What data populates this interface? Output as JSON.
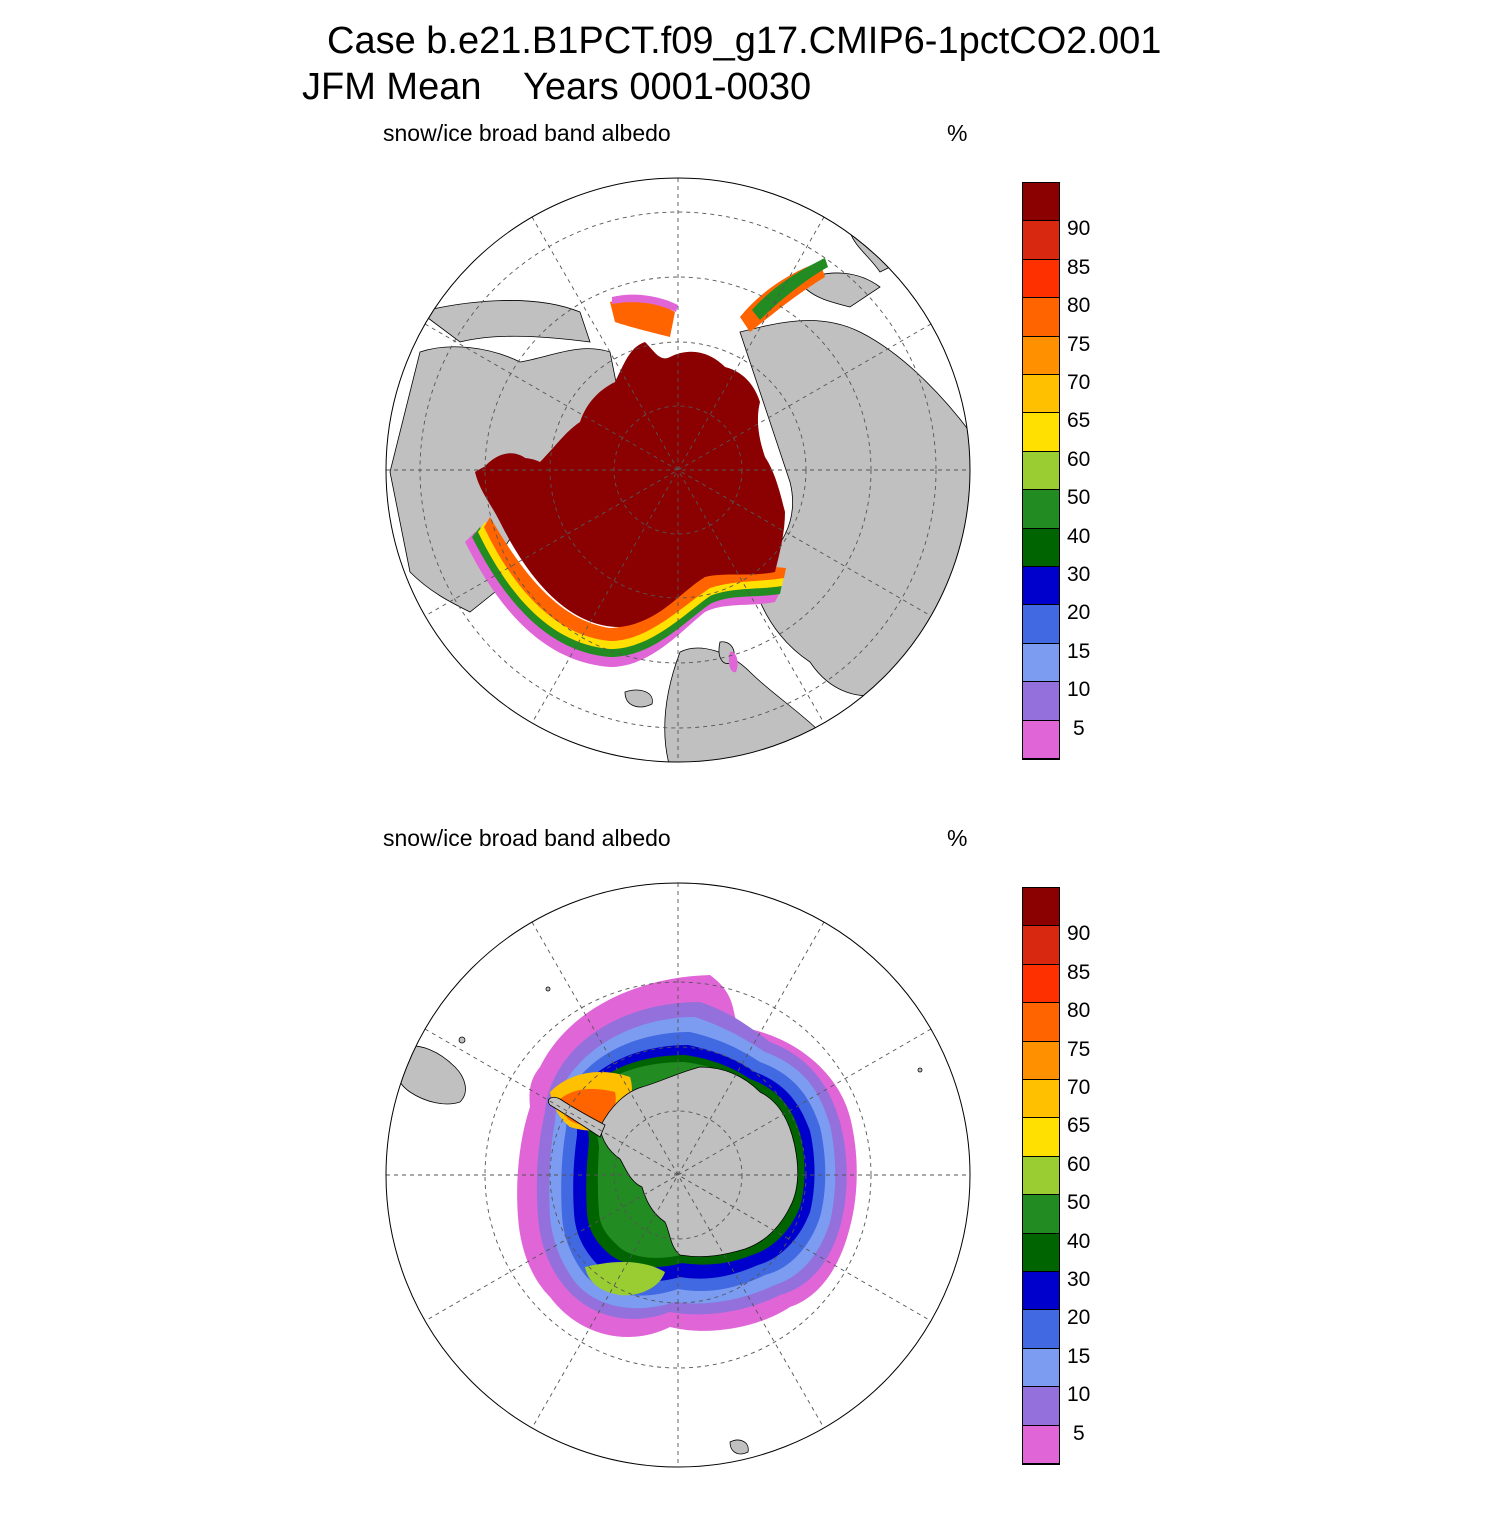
{
  "title": {
    "line1": "Case b.e21.B1PCT.f09_g17.CMIP6-1pctCO2.001",
    "line2": "JFM Mean    Years 0001-0030"
  },
  "panels": [
    {
      "id": "north",
      "variable": "snow/ice broad band albedo",
      "units": "%"
    },
    {
      "id": "south",
      "variable": "snow/ice broad band albedo",
      "units": "%"
    }
  ],
  "colorbar": {
    "labels": [
      "5",
      "10",
      "15",
      "20",
      "30",
      "40",
      "50",
      "60",
      "65",
      "70",
      "75",
      "80",
      "85",
      "90"
    ],
    "colors": [
      "#e066d8",
      "#9370db",
      "#7b9cf0",
      "#4169e1",
      "#0000cd",
      "#006400",
      "#228b22",
      "#9acd32",
      "#ffe000",
      "#ffc000",
      "#ff9000",
      "#ff6400",
      "#ff3000",
      "#d82810",
      "#8b0000"
    ]
  },
  "map_colors": {
    "land": "#c0c0c0",
    "ocean": "#ffffff",
    "grid": "#555555",
    "coast": "#000000"
  }
}
